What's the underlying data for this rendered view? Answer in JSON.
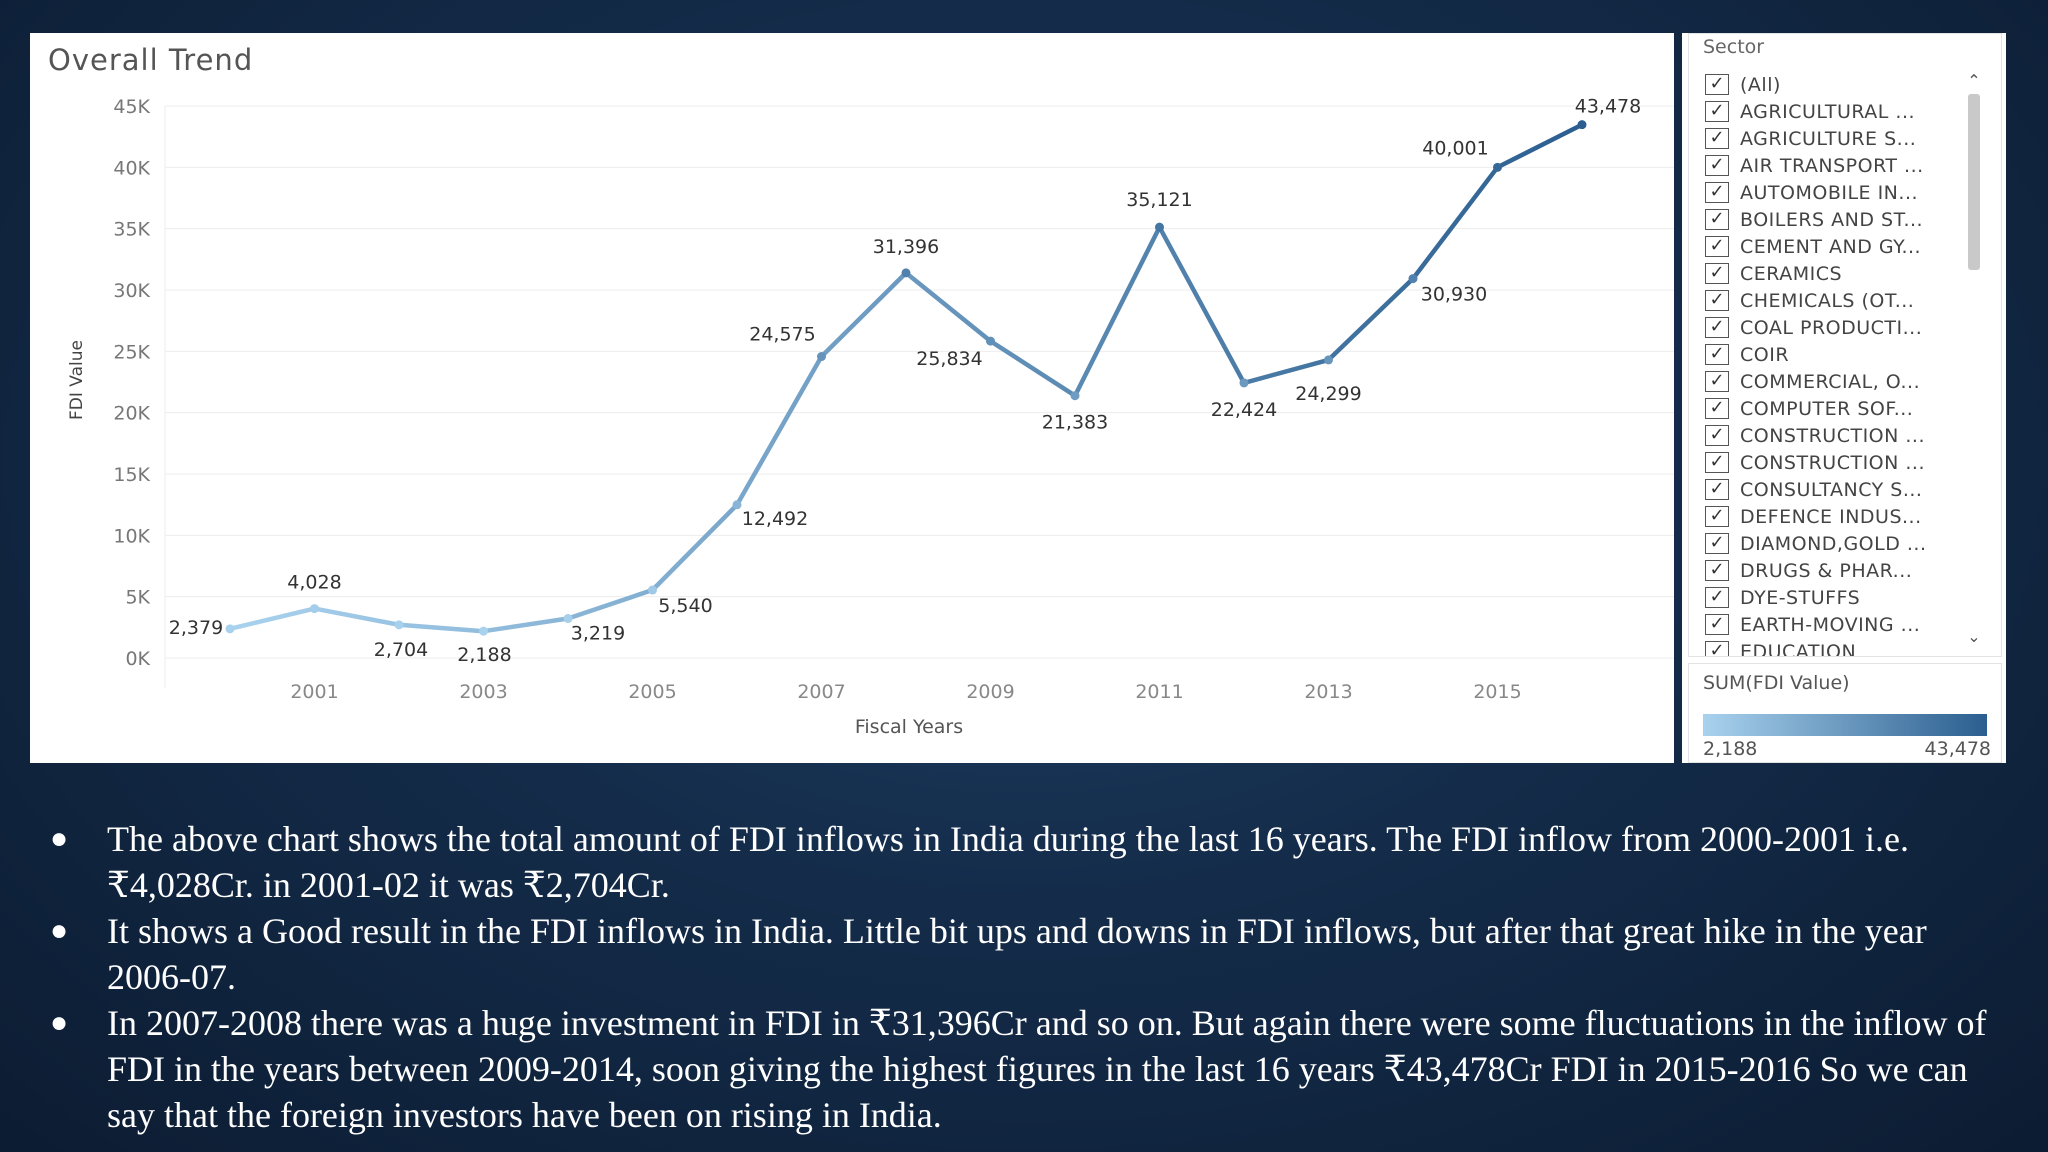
{
  "viz": {
    "title": "Overall Trend"
  },
  "chart_data": {
    "type": "line",
    "title": "Overall Trend",
    "xlabel": "Fiscal Years",
    "ylabel": "FDI Value",
    "x_ticks": [
      "2001",
      "2003",
      "2005",
      "2007",
      "2009",
      "2011",
      "2013",
      "2015"
    ],
    "y_ticks": [
      "0K",
      "5K",
      "10K",
      "15K",
      "20K",
      "25K",
      "30K",
      "35K",
      "40K",
      "45K"
    ],
    "ylim": [
      0,
      45000
    ],
    "xlim": [
      2000,
      2016.8
    ],
    "grid": true,
    "color_scale": [
      "#a9d2ee",
      "#2b5e8f"
    ],
    "points": [
      {
        "x": 2000,
        "y": 2379,
        "label": "2,379"
      },
      {
        "x": 2001,
        "y": 4028,
        "label": "4,028"
      },
      {
        "x": 2002,
        "y": 2704,
        "label": "2,704"
      },
      {
        "x": 2003,
        "y": 2188,
        "label": "2,188"
      },
      {
        "x": 2004,
        "y": 3219,
        "label": "3,219"
      },
      {
        "x": 2005,
        "y": 5540,
        "label": "5,540"
      },
      {
        "x": 2006,
        "y": 12492,
        "label": "12,492"
      },
      {
        "x": 2007,
        "y": 24575,
        "label": "24,575"
      },
      {
        "x": 2008,
        "y": 31396,
        "label": "31,396"
      },
      {
        "x": 2009,
        "y": 25834,
        "label": "25,834"
      },
      {
        "x": 2010,
        "y": 21383,
        "label": "21,383"
      },
      {
        "x": 2011,
        "y": 35121,
        "label": "35,121"
      },
      {
        "x": 2012,
        "y": 22424,
        "label": "22,424"
      },
      {
        "x": 2013,
        "y": 24299,
        "label": "24,299"
      },
      {
        "x": 2014,
        "y": 30930,
        "label": "30,930"
      },
      {
        "x": 2015,
        "y": 40001,
        "label": "40,001"
      },
      {
        "x": 2016,
        "y": 43478,
        "label": "43,478"
      }
    ]
  },
  "filter": {
    "title": "Sector",
    "check_mark": "✓",
    "items": [
      "(All)",
      "AGRICULTURAL ...",
      "AGRICULTURE S...",
      "AIR TRANSPORT ...",
      "AUTOMOBILE IN...",
      "BOILERS AND ST...",
      "CEMENT AND GY...",
      "CERAMICS",
      "CHEMICALS (OT...",
      "COAL PRODUCTI...",
      "COIR",
      "COMMERCIAL, O...",
      "COMPUTER SOF...",
      "CONSTRUCTION ...",
      "CONSTRUCTION ...",
      "CONSULTANCY S...",
      "DEFENCE INDUS...",
      "DIAMOND,GOLD ...",
      "DRUGS & PHAR...",
      "DYE-STUFFS",
      "EARTH-MOVING ...",
      "EDUCATION"
    ],
    "scroll_up_icon": "chevron-up-icon",
    "scroll_down_icon": "chevron-down-icon"
  },
  "legend": {
    "title": "SUM(FDI Value)",
    "min_label": "2,188",
    "max_label": "43,478"
  },
  "bullets": {
    "marker": "●",
    "items": [
      "The above chart shows the total amount of FDI inflows in India during the last 16 years. The FDI inflow from 2000-2001 i.e.₹4,028Cr. in 2001-02 it was ₹2,704Cr.",
      "It shows a Good result in the FDI inflows in India. Little bit ups and downs in FDI inflows, but after that great hike in the year  2006-07.",
      "In 2007-2008 there was a huge investment in FDI in ₹31,396Cr and so on. But again there were some fluctuations in the inflow of FDI in the years between 2009-2014, soon giving the highest figures in the last 16 years ₹43,478Cr FDI in 2015-2016  So we can say that the foreign investors have been on rising in India."
    ]
  }
}
